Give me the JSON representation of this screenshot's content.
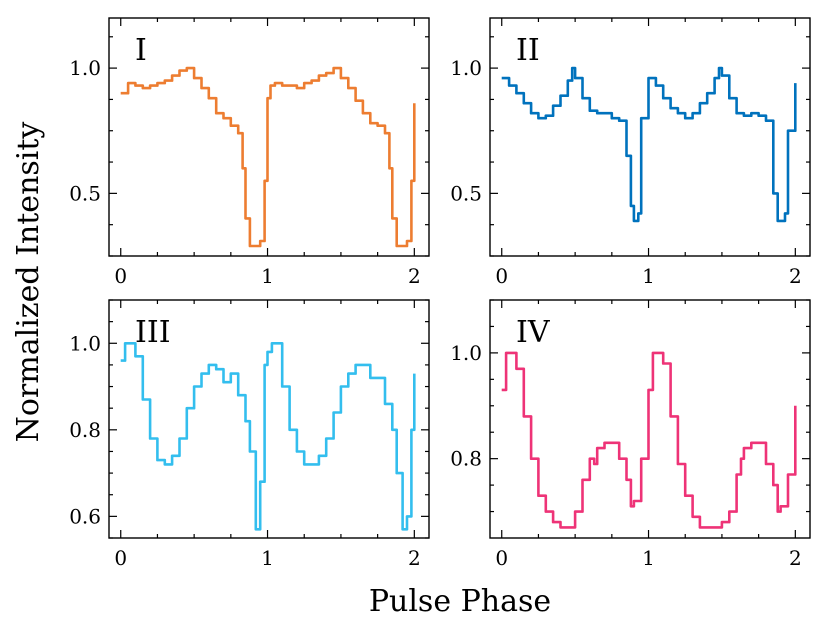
{
  "figure": {
    "xlabel": "Pulse Phase",
    "ylabel": "Normalized Intensity"
  },
  "chart_data": [
    {
      "type": "line",
      "panel_label": "I",
      "color": "#ED7D31",
      "xlim": [
        -0.08,
        2.1
      ],
      "ylim": [
        0.25,
        1.2
      ],
      "xticks": [
        0,
        1,
        2
      ],
      "yticks": [
        0.5,
        1.0
      ],
      "ytick_labels": [
        "0.5",
        "1.0"
      ],
      "x": [
        0.0,
        0.05,
        0.1,
        0.15,
        0.2,
        0.25,
        0.3,
        0.35,
        0.4,
        0.45,
        0.5,
        0.55,
        0.6,
        0.65,
        0.7,
        0.75,
        0.8,
        0.83,
        0.85,
        0.88,
        0.9,
        0.95,
        0.98,
        1.0,
        1.02,
        1.05,
        1.1,
        1.15,
        1.2,
        1.25,
        1.3,
        1.35,
        1.4,
        1.45,
        1.5,
        1.55,
        1.6,
        1.65,
        1.7,
        1.75,
        1.8,
        1.83,
        1.85,
        1.88,
        1.9,
        1.95,
        1.98,
        2.0
      ],
      "y": [
        0.9,
        0.94,
        0.93,
        0.92,
        0.93,
        0.94,
        0.95,
        0.97,
        0.99,
        1.0,
        0.96,
        0.92,
        0.88,
        0.82,
        0.8,
        0.77,
        0.74,
        0.6,
        0.4,
        0.29,
        0.29,
        0.31,
        0.55,
        0.88,
        0.93,
        0.94,
        0.93,
        0.93,
        0.92,
        0.94,
        0.95,
        0.97,
        0.98,
        1.0,
        0.96,
        0.92,
        0.87,
        0.82,
        0.78,
        0.77,
        0.74,
        0.6,
        0.4,
        0.29,
        0.29,
        0.31,
        0.55,
        0.86
      ]
    },
    {
      "type": "line",
      "panel_label": "II",
      "color": "#0072BD",
      "xlim": [
        -0.08,
        2.1
      ],
      "ylim": [
        0.25,
        1.2
      ],
      "xticks": [
        0,
        1,
        2
      ],
      "yticks": [
        0.5,
        1.0
      ],
      "ytick_labels": [
        "0.5",
        "1.0"
      ],
      "x": [
        0.0,
        0.05,
        0.1,
        0.15,
        0.2,
        0.25,
        0.3,
        0.35,
        0.4,
        0.45,
        0.48,
        0.5,
        0.55,
        0.6,
        0.65,
        0.7,
        0.75,
        0.8,
        0.85,
        0.88,
        0.9,
        0.93,
        0.95,
        1.0,
        1.05,
        1.1,
        1.15,
        1.2,
        1.25,
        1.3,
        1.35,
        1.4,
        1.45,
        1.48,
        1.5,
        1.55,
        1.6,
        1.65,
        1.7,
        1.75,
        1.8,
        1.85,
        1.88,
        1.9,
        1.93,
        1.95,
        2.0
      ],
      "y": [
        0.96,
        0.93,
        0.9,
        0.86,
        0.82,
        0.8,
        0.81,
        0.85,
        0.89,
        0.95,
        1.0,
        0.96,
        0.88,
        0.83,
        0.82,
        0.82,
        0.8,
        0.79,
        0.65,
        0.45,
        0.39,
        0.42,
        0.8,
        0.96,
        0.93,
        0.88,
        0.84,
        0.82,
        0.8,
        0.82,
        0.86,
        0.9,
        0.96,
        1.0,
        0.97,
        0.88,
        0.82,
        0.81,
        0.82,
        0.81,
        0.79,
        0.5,
        0.39,
        0.39,
        0.42,
        0.75,
        0.94
      ]
    },
    {
      "type": "line",
      "panel_label": "III",
      "color": "#33BEEE",
      "xlim": [
        -0.08,
        2.1
      ],
      "ylim": [
        0.55,
        1.1
      ],
      "xticks": [
        0,
        1,
        2
      ],
      "yticks": [
        0.6,
        0.8,
        1.0
      ],
      "ytick_labels": [
        "0.6",
        "0.8",
        "1.0"
      ],
      "x": [
        0.0,
        0.03,
        0.07,
        0.1,
        0.15,
        0.2,
        0.25,
        0.3,
        0.35,
        0.4,
        0.45,
        0.5,
        0.55,
        0.6,
        0.65,
        0.7,
        0.75,
        0.8,
        0.85,
        0.88,
        0.92,
        0.95,
        0.98,
        1.0,
        1.03,
        1.07,
        1.1,
        1.15,
        1.2,
        1.25,
        1.3,
        1.35,
        1.4,
        1.45,
        1.5,
        1.55,
        1.6,
        1.65,
        1.7,
        1.75,
        1.8,
        1.85,
        1.88,
        1.92,
        1.95,
        1.98,
        2.0
      ],
      "y": [
        0.96,
        1.0,
        1.0,
        0.97,
        0.87,
        0.78,
        0.73,
        0.72,
        0.74,
        0.78,
        0.85,
        0.9,
        0.93,
        0.95,
        0.94,
        0.91,
        0.93,
        0.88,
        0.82,
        0.75,
        0.57,
        0.68,
        0.95,
        0.98,
        1.0,
        1.0,
        0.9,
        0.8,
        0.75,
        0.72,
        0.72,
        0.74,
        0.78,
        0.84,
        0.9,
        0.93,
        0.95,
        0.95,
        0.92,
        0.92,
        0.86,
        0.8,
        0.7,
        0.57,
        0.6,
        0.8,
        0.93
      ]
    },
    {
      "type": "line",
      "panel_label": "IV",
      "color": "#EE3377",
      "xlim": [
        -0.08,
        2.1
      ],
      "ylim": [
        0.65,
        1.1
      ],
      "xticks": [
        0,
        1,
        2
      ],
      "yticks": [
        0.8,
        1.0
      ],
      "ytick_labels": [
        "0.8",
        "1.0"
      ],
      "x": [
        0.0,
        0.03,
        0.07,
        0.1,
        0.15,
        0.2,
        0.25,
        0.3,
        0.35,
        0.4,
        0.45,
        0.5,
        0.55,
        0.6,
        0.63,
        0.65,
        0.7,
        0.75,
        0.8,
        0.85,
        0.88,
        0.9,
        0.95,
        1.0,
        1.03,
        1.07,
        1.1,
        1.15,
        1.2,
        1.25,
        1.3,
        1.35,
        1.4,
        1.45,
        1.5,
        1.55,
        1.6,
        1.63,
        1.65,
        1.7,
        1.75,
        1.8,
        1.85,
        1.88,
        1.9,
        1.95,
        2.0
      ],
      "y": [
        0.93,
        1.0,
        1.0,
        0.97,
        0.88,
        0.8,
        0.73,
        0.7,
        0.68,
        0.67,
        0.67,
        0.7,
        0.76,
        0.8,
        0.79,
        0.82,
        0.83,
        0.83,
        0.8,
        0.76,
        0.71,
        0.72,
        0.8,
        0.93,
        1.0,
        1.0,
        0.98,
        0.88,
        0.79,
        0.73,
        0.69,
        0.67,
        0.67,
        0.67,
        0.68,
        0.7,
        0.77,
        0.8,
        0.82,
        0.83,
        0.83,
        0.79,
        0.75,
        0.7,
        0.71,
        0.77,
        0.9
      ]
    }
  ]
}
